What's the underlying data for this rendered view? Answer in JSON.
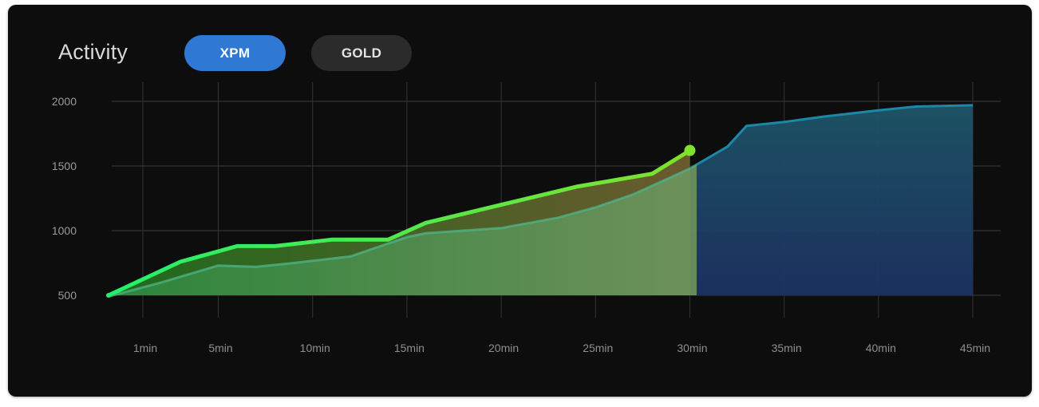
{
  "header": {
    "title": "Activity",
    "tabs": [
      {
        "label": "XPM",
        "active": true
      },
      {
        "label": "GOLD",
        "active": false
      }
    ]
  },
  "colors": {
    "active_tab": "#2f78d4",
    "inactive_tab": "#2b2b2b",
    "series_player": "#5fe33a",
    "series_average": "#1e86a6",
    "highlight_tick": "#39d649"
  },
  "chart_data": {
    "type": "area",
    "x_tick_labels": [
      "1min",
      "5min",
      "10min",
      "15min",
      "20min",
      "25min",
      "30min",
      "35min",
      "40min",
      "45min"
    ],
    "y_ticks": [
      2000,
      1500,
      1000,
      500
    ],
    "ylim": [
      500,
      2000
    ],
    "highlighted_x_label": "30min",
    "grid": true,
    "series": [
      {
        "x": [
          0,
          3,
          6,
          8,
          11,
          14,
          16,
          20,
          24,
          28,
          30
        ],
        "values": [
          500,
          760,
          880,
          880,
          930,
          930,
          1060,
          1200,
          1340,
          1440,
          1620
        ]
      },
      {
        "x": [
          0,
          2,
          5,
          7,
          9,
          12,
          15,
          16,
          18,
          20,
          23,
          25,
          27,
          30,
          32,
          33,
          35,
          37,
          40,
          42,
          45
        ],
        "values": [
          490,
          600,
          730,
          720,
          750,
          800,
          950,
          980,
          1000,
          1020,
          1100,
          1180,
          1280,
          1480,
          1650,
          1810,
          1840,
          1880,
          1930,
          1960,
          1970
        ]
      }
    ]
  }
}
